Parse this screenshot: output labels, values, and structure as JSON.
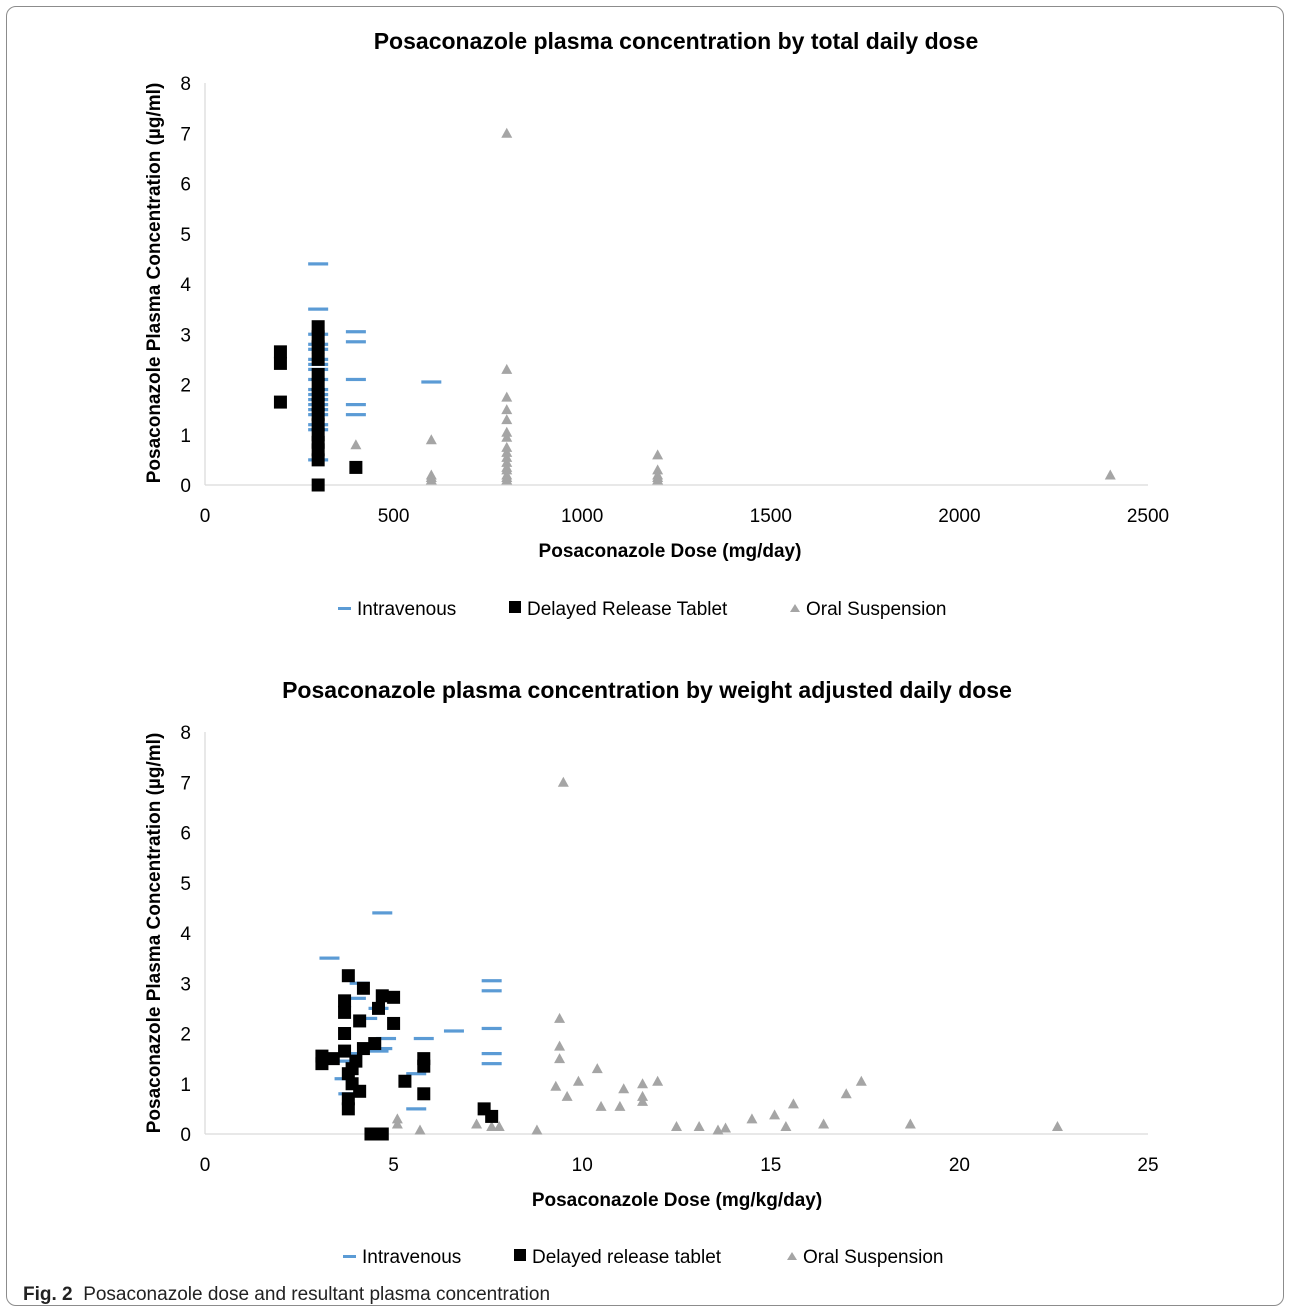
{
  "caption": {
    "label": "Fig. 2",
    "text": "Posaconazole dose and resultant plasma concentration"
  },
  "chart_data": [
    {
      "type": "scatter",
      "title": "Posaconazole plasma concentration by total daily dose",
      "xlabel": "Posaconazole Dose (mg/day)",
      "ylabel": "Posaconazole Plasma Concentration (µg/ml)",
      "xlim": [
        0,
        2500
      ],
      "ylim": [
        0,
        8
      ],
      "xticks": [
        0,
        500,
        1000,
        1500,
        2000,
        2500
      ],
      "yticks": [
        0,
        1,
        2,
        3,
        4,
        5,
        6,
        7,
        8
      ],
      "grid": false,
      "legend_position": "bottom",
      "series": [
        {
          "name": "Intravenous",
          "marker": "dash",
          "color": "#5b9bd5",
          "points": [
            [
              300,
              4.4
            ],
            [
              300,
              3.5
            ],
            [
              300,
              3.0
            ],
            [
              300,
              2.8
            ],
            [
              300,
              2.7
            ],
            [
              300,
              2.5
            ],
            [
              300,
              2.4
            ],
            [
              300,
              2.3
            ],
            [
              300,
              2.1
            ],
            [
              300,
              1.9
            ],
            [
              300,
              1.8
            ],
            [
              300,
              1.7
            ],
            [
              300,
              1.6
            ],
            [
              300,
              1.5
            ],
            [
              300,
              1.4
            ],
            [
              300,
              1.2
            ],
            [
              300,
              1.1
            ],
            [
              300,
              0.5
            ],
            [
              400,
              3.05
            ],
            [
              400,
              2.85
            ],
            [
              400,
              2.1
            ],
            [
              400,
              1.6
            ],
            [
              400,
              1.4
            ],
            [
              600,
              2.05
            ]
          ]
        },
        {
          "name": "Delayed Release Tablet",
          "marker": "square",
          "color": "#000000",
          "points": [
            [
              200,
              2.65
            ],
            [
              200,
              2.42
            ],
            [
              200,
              1.65
            ],
            [
              300,
              3.15
            ],
            [
              300,
              2.95
            ],
            [
              300,
              2.75
            ],
            [
              300,
              2.5
            ],
            [
              300,
              2.2
            ],
            [
              300,
              2.0
            ],
            [
              300,
              1.8
            ],
            [
              300,
              1.6
            ],
            [
              300,
              1.4
            ],
            [
              300,
              1.2
            ],
            [
              300,
              1.0
            ],
            [
              300,
              0.85
            ],
            [
              300,
              0.7
            ],
            [
              300,
              0.5
            ],
            [
              300,
              0.0
            ],
            [
              400,
              0.35
            ]
          ]
        },
        {
          "name": "Oral Suspension",
          "marker": "triangle",
          "color": "#a5a5a5",
          "points": [
            [
              400,
              0.8
            ],
            [
              600,
              0.9
            ],
            [
              600,
              0.2
            ],
            [
              600,
              0.15
            ],
            [
              600,
              0.1
            ],
            [
              800,
              7.0
            ],
            [
              800,
              2.3
            ],
            [
              800,
              1.75
            ],
            [
              800,
              1.5
            ],
            [
              800,
              1.3
            ],
            [
              800,
              1.05
            ],
            [
              800,
              0.95
            ],
            [
              800,
              0.75
            ],
            [
              800,
              0.65
            ],
            [
              800,
              0.55
            ],
            [
              800,
              0.45
            ],
            [
              800,
              0.35
            ],
            [
              800,
              0.3
            ],
            [
              800,
              0.2
            ],
            [
              800,
              0.15
            ],
            [
              800,
              0.1
            ],
            [
              1200,
              0.6
            ],
            [
              1200,
              0.3
            ],
            [
              1200,
              0.2
            ],
            [
              1200,
              0.15
            ],
            [
              1200,
              0.1
            ],
            [
              2400,
              0.2
            ]
          ]
        }
      ]
    },
    {
      "type": "scatter",
      "title": "Posaconazole plasma concentration by weight adjusted daily dose",
      "xlabel": "Posaconazole Dose (mg/kg/day)",
      "ylabel": "Posaconazole Plasma Concentration (µg/ml)",
      "xlim": [
        0,
        25
      ],
      "ylim": [
        0,
        8
      ],
      "xticks": [
        0,
        5,
        10,
        15,
        20,
        25
      ],
      "yticks": [
        0,
        1,
        2,
        3,
        4,
        5,
        6,
        7,
        8
      ],
      "grid": false,
      "legend_position": "bottom",
      "series": [
        {
          "name": "Intravenous",
          "marker": "dash",
          "color": "#5b9bd5",
          "points": [
            [
              3.3,
              3.5
            ],
            [
              4.7,
              4.4
            ],
            [
              4.1,
              3.0
            ],
            [
              4.0,
              2.7
            ],
            [
              4.6,
              2.5
            ],
            [
              4.3,
              2.3
            ],
            [
              4.8,
              1.9
            ],
            [
              4.7,
              1.7
            ],
            [
              4.6,
              1.65
            ],
            [
              4.3,
              1.7
            ],
            [
              3.8,
              1.6
            ],
            [
              3.8,
              1.45
            ],
            [
              3.7,
              1.1
            ],
            [
              3.8,
              0.8
            ],
            [
              5.8,
              1.9
            ],
            [
              5.6,
              1.2
            ],
            [
              5.6,
              0.5
            ],
            [
              6.6,
              2.05
            ],
            [
              7.6,
              3.05
            ],
            [
              7.6,
              2.85
            ],
            [
              7.6,
              2.1
            ],
            [
              7.6,
              1.6
            ],
            [
              7.6,
              1.4
            ]
          ]
        },
        {
          "name": "Delayed release tablet",
          "marker": "square",
          "color": "#000000",
          "points": [
            [
              3.8,
              3.15
            ],
            [
              4.2,
              2.9
            ],
            [
              4.7,
              2.75
            ],
            [
              5.0,
              2.72
            ],
            [
              3.7,
              2.65
            ],
            [
              3.7,
              2.42
            ],
            [
              4.6,
              2.5
            ],
            [
              4.1,
              2.25
            ],
            [
              5.0,
              2.2
            ],
            [
              3.7,
              2.0
            ],
            [
              4.5,
              1.8
            ],
            [
              4.2,
              1.7
            ],
            [
              3.7,
              1.65
            ],
            [
              3.1,
              1.55
            ],
            [
              3.4,
              1.5
            ],
            [
              3.1,
              1.4
            ],
            [
              4.0,
              1.45
            ],
            [
              3.9,
              1.3
            ],
            [
              3.8,
              1.2
            ],
            [
              3.9,
              1.0
            ],
            [
              4.1,
              0.85
            ],
            [
              3.8,
              0.7
            ],
            [
              3.8,
              0.5
            ],
            [
              5.8,
              1.5
            ],
            [
              5.8,
              1.35
            ],
            [
              5.3,
              1.05
            ],
            [
              5.8,
              0.8
            ],
            [
              7.4,
              0.5
            ],
            [
              7.6,
              0.35
            ],
            [
              4.4,
              0.0
            ],
            [
              4.7,
              0.0
            ]
          ]
        },
        {
          "name": "Oral Suspension",
          "marker": "triangle",
          "color": "#a5a5a5",
          "points": [
            [
              9.5,
              7.0
            ],
            [
              9.4,
              2.3
            ],
            [
              9.4,
              1.75
            ],
            [
              9.4,
              1.5
            ],
            [
              10.4,
              1.3
            ],
            [
              17.4,
              1.05
            ],
            [
              9.9,
              1.05
            ],
            [
              12.0,
              1.05
            ],
            [
              11.6,
              1.0
            ],
            [
              9.3,
              0.95
            ],
            [
              11.1,
              0.9
            ],
            [
              17.0,
              0.8
            ],
            [
              9.6,
              0.75
            ],
            [
              11.6,
              0.75
            ],
            [
              11.6,
              0.65
            ],
            [
              15.6,
              0.6
            ],
            [
              10.5,
              0.55
            ],
            [
              11.0,
              0.55
            ],
            [
              15.1,
              0.38
            ],
            [
              14.5,
              0.3
            ],
            [
              5.1,
              0.3
            ],
            [
              5.1,
              0.2
            ],
            [
              18.7,
              0.2
            ],
            [
              16.4,
              0.2
            ],
            [
              7.2,
              0.2
            ],
            [
              7.6,
              0.15
            ],
            [
              7.8,
              0.15
            ],
            [
              13.1,
              0.15
            ],
            [
              12.5,
              0.15
            ],
            [
              15.4,
              0.15
            ],
            [
              22.6,
              0.15
            ],
            [
              13.8,
              0.12
            ],
            [
              13.6,
              0.08
            ],
            [
              8.8,
              0.08
            ],
            [
              5.7,
              0.08
            ]
          ]
        }
      ]
    }
  ]
}
